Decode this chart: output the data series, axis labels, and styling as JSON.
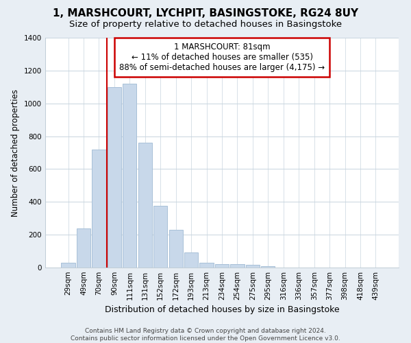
{
  "title": "1, MARSHCOURT, LYCHPIT, BASINGSTOKE, RG24 8UY",
  "subtitle": "Size of property relative to detached houses in Basingstoke",
  "xlabel": "Distribution of detached houses by size in Basingstoke",
  "ylabel": "Number of detached properties",
  "bar_labels": [
    "29sqm",
    "49sqm",
    "70sqm",
    "90sqm",
    "111sqm",
    "131sqm",
    "152sqm",
    "172sqm",
    "193sqm",
    "213sqm",
    "234sqm",
    "254sqm",
    "275sqm",
    "295sqm",
    "316sqm",
    "336sqm",
    "357sqm",
    "377sqm",
    "398sqm",
    "418sqm",
    "439sqm"
  ],
  "bar_values": [
    30,
    240,
    720,
    1100,
    1120,
    760,
    375,
    230,
    90,
    30,
    20,
    20,
    15,
    10,
    0,
    0,
    0,
    0,
    0,
    0,
    0
  ],
  "bar_color": "#c8d8ea",
  "bar_edge_color": "#a8c0d8",
  "vline_color": "#cc0000",
  "vline_x_index": 3,
  "ylim": [
    0,
    1400
  ],
  "yticks": [
    0,
    200,
    400,
    600,
    800,
    1000,
    1200,
    1400
  ],
  "annotation_title": "1 MARSHCOURT: 81sqm",
  "annotation_line1": "← 11% of detached houses are smaller (535)",
  "annotation_line2": "88% of semi-detached houses are larger (4,175) →",
  "annotation_box_color": "#ffffff",
  "annotation_box_edge": "#cc0000",
  "footer_line1": "Contains HM Land Registry data © Crown copyright and database right 2024.",
  "footer_line2": "Contains public sector information licensed under the Open Government Licence v3.0.",
  "bg_color": "#e8eef4",
  "plot_bg_color": "#ffffff",
  "title_fontsize": 11,
  "subtitle_fontsize": 9.5,
  "xlabel_fontsize": 9,
  "ylabel_fontsize": 8.5,
  "tick_fontsize": 7.5,
  "footer_fontsize": 6.5,
  "annotation_fontsize": 8.5
}
